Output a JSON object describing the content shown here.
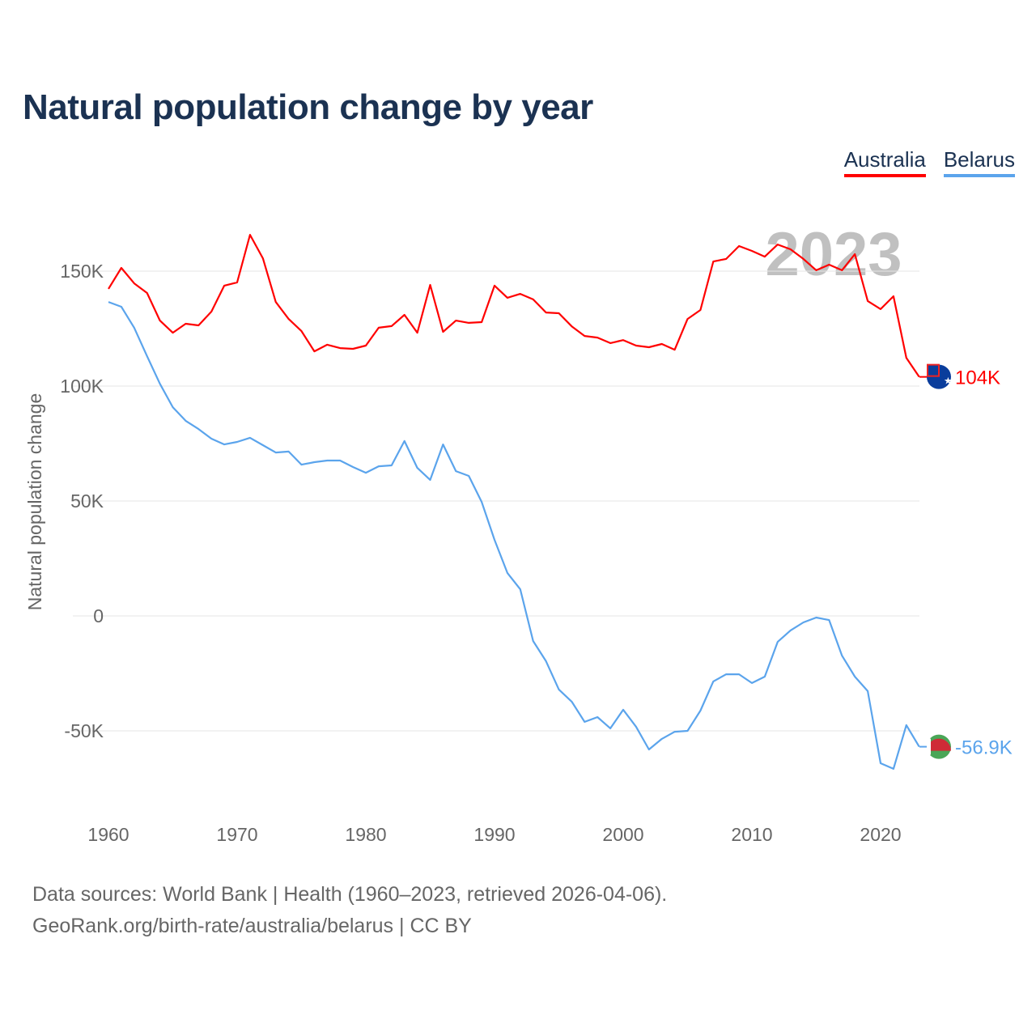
{
  "title": "Natural population change by year",
  "footer": {
    "line1": "Data sources: World Bank | Health (1960–2023, retrieved 2026-04-06).",
    "line2": "GeoRank.org/birth-rate/australia/belarus | CC BY"
  },
  "chart_data": {
    "type": "line",
    "title": "Natural population change by year",
    "xlabel": "",
    "ylabel": "Natural population change",
    "watermark_year": "2023",
    "xlim": [
      1960,
      2023
    ],
    "ylim": [
      -70000,
      170000
    ],
    "x_ticks": [
      1960,
      1970,
      1980,
      1990,
      2000,
      2010,
      2020
    ],
    "y_ticks": [
      {
        "value": -50000,
        "label": "-50K"
      },
      {
        "value": 0,
        "label": "0"
      },
      {
        "value": 50000,
        "label": "50K"
      },
      {
        "value": 100000,
        "label": "100K"
      },
      {
        "value": 150000,
        "label": "150K"
      }
    ],
    "grid": true,
    "legend_placement": "top-right",
    "x": [
      1960,
      1961,
      1962,
      1963,
      1964,
      1965,
      1966,
      1967,
      1968,
      1969,
      1970,
      1971,
      1972,
      1973,
      1974,
      1975,
      1976,
      1977,
      1978,
      1979,
      1980,
      1981,
      1982,
      1983,
      1984,
      1985,
      1986,
      1987,
      1988,
      1989,
      1990,
      1991,
      1992,
      1993,
      1994,
      1995,
      1996,
      1997,
      1998,
      1999,
      2000,
      2001,
      2002,
      2003,
      2004,
      2005,
      2006,
      2007,
      2008,
      2009,
      2010,
      2011,
      2012,
      2013,
      2014,
      2015,
      2016,
      2017,
      2018,
      2019,
      2020,
      2021,
      2022,
      2023
    ],
    "series": [
      {
        "name": "Australia",
        "color": "#ff0000",
        "end_label": "104K",
        "flag": "australia-flag",
        "values": [
          142300,
          151400,
          144700,
          140500,
          128500,
          123200,
          127100,
          126400,
          132400,
          143700,
          145100,
          165800,
          155600,
          136600,
          129200,
          123900,
          115100,
          118000,
          116500,
          116200,
          117600,
          125400,
          126100,
          131000,
          123200,
          144000,
          123600,
          128500,
          127500,
          127800,
          143700,
          138400,
          140100,
          137700,
          132000,
          131700,
          126000,
          121800,
          121100,
          118700,
          120000,
          117600,
          116900,
          118300,
          115800,
          129200,
          133100,
          154200,
          155300,
          160900,
          158800,
          156300,
          161600,
          159500,
          155300,
          150400,
          152800,
          150400,
          157400,
          137000,
          133500,
          139100,
          112300,
          104000
        ]
      },
      {
        "name": "Belarus",
        "color": "#5ba4ec",
        "end_label": "-56.9K",
        "flag": "belarus-flag",
        "values": [
          136600,
          134500,
          125400,
          113000,
          101000,
          90800,
          84900,
          81300,
          77100,
          74600,
          75700,
          77500,
          74300,
          71100,
          71500,
          65800,
          66900,
          67600,
          67600,
          64800,
          62300,
          65100,
          65500,
          76100,
          64400,
          59200,
          74600,
          63000,
          60900,
          49600,
          33100,
          18700,
          11600,
          -10900,
          -19700,
          -32000,
          -37300,
          -46100,
          -44000,
          -48900,
          -40800,
          -48200,
          -58100,
          -53500,
          -50400,
          -50000,
          -41200,
          -28500,
          -25400,
          -25400,
          -29200,
          -26400,
          -11300,
          -6300,
          -2800,
          -700,
          -1800,
          -17300,
          -26400,
          -32700,
          -64100,
          -66500,
          -47500,
          -56900
        ]
      }
    ]
  }
}
